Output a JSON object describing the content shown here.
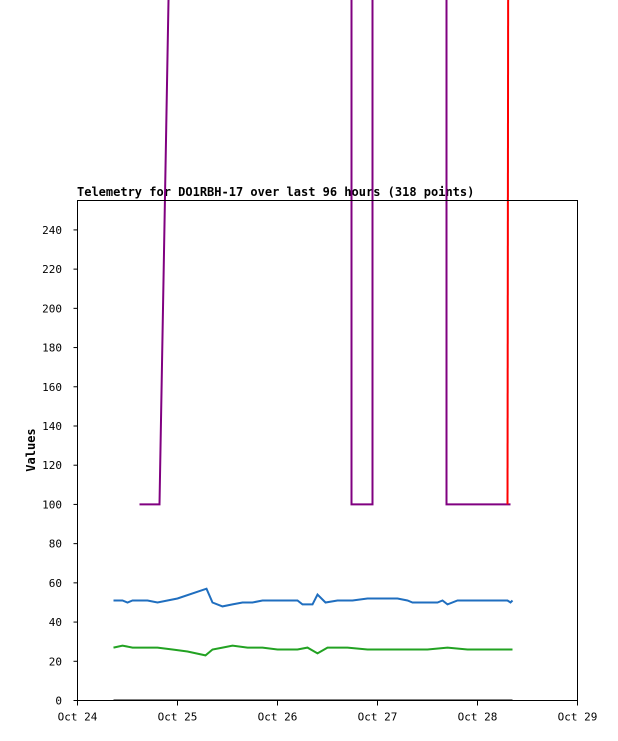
{
  "chart_data": {
    "type": "line",
    "title": "Telemetry for DO1RBH-17 over last 96 hours (318 points)",
    "xlabel": "",
    "ylabel": "Values",
    "x_ticks": [
      "Oct 24",
      "Oct 25",
      "Oct 26",
      "Oct 27",
      "Oct 28",
      "Oct 29"
    ],
    "y_ticks": [
      0,
      20,
      40,
      60,
      80,
      100,
      120,
      140,
      160,
      180,
      200,
      220,
      240
    ],
    "xlim": [
      0,
      5
    ],
    "ylim": [
      0,
      255
    ],
    "grid": false,
    "colors": {
      "background": "#ffffff",
      "frame": "#000000",
      "purple": "#800080",
      "red": "#ff0000",
      "blue": "#1f6ebf",
      "green": "#22a222",
      "black": "#000000"
    },
    "series": [
      {
        "color": "#800080",
        "points": [
          [
            0.62,
            100
          ],
          [
            0.82,
            100
          ],
          [
            0.96,
            500
          ],
          [
            2.74,
            500
          ],
          [
            2.74,
            100
          ],
          [
            2.95,
            100
          ],
          [
            2.95,
            500
          ],
          [
            3.69,
            500
          ],
          [
            3.69,
            100
          ],
          [
            4.33,
            100
          ]
        ]
      },
      {
        "color": "#ff0000",
        "points": [
          [
            4.3,
            100
          ],
          [
            4.31,
            500
          ]
        ]
      },
      {
        "color": "#1f6ebf",
        "points": [
          [
            0.36,
            51
          ],
          [
            0.45,
            51
          ],
          [
            0.5,
            50
          ],
          [
            0.55,
            51
          ],
          [
            0.6,
            51
          ],
          [
            0.7,
            51
          ],
          [
            0.8,
            50
          ],
          [
            1.0,
            52
          ],
          [
            1.29,
            57
          ],
          [
            1.35,
            50
          ],
          [
            1.45,
            48
          ],
          [
            1.55,
            49
          ],
          [
            1.65,
            50
          ],
          [
            1.75,
            50
          ],
          [
            1.85,
            51
          ],
          [
            2.0,
            51
          ],
          [
            2.1,
            51
          ],
          [
            2.2,
            51
          ],
          [
            2.25,
            49
          ],
          [
            2.35,
            49
          ],
          [
            2.4,
            54
          ],
          [
            2.48,
            50
          ],
          [
            2.6,
            51
          ],
          [
            2.75,
            51
          ],
          [
            2.9,
            52
          ],
          [
            3.05,
            52
          ],
          [
            3.2,
            52
          ],
          [
            3.3,
            51
          ],
          [
            3.35,
            50
          ],
          [
            3.5,
            50
          ],
          [
            3.6,
            50
          ],
          [
            3.65,
            51
          ],
          [
            3.7,
            49
          ],
          [
            3.8,
            51
          ],
          [
            3.9,
            51
          ],
          [
            4.0,
            51
          ],
          [
            4.1,
            51
          ],
          [
            4.2,
            51
          ],
          [
            4.3,
            51
          ],
          [
            4.33,
            50
          ],
          [
            4.35,
            51
          ]
        ]
      },
      {
        "color": "#22a222",
        "points": [
          [
            0.36,
            27
          ],
          [
            0.45,
            28
          ],
          [
            0.55,
            27
          ],
          [
            0.7,
            27
          ],
          [
            0.8,
            27
          ],
          [
            0.95,
            26
          ],
          [
            1.1,
            25
          ],
          [
            1.28,
            23
          ],
          [
            1.35,
            26
          ],
          [
            1.45,
            27
          ],
          [
            1.55,
            28
          ],
          [
            1.7,
            27
          ],
          [
            1.85,
            27
          ],
          [
            2.0,
            26
          ],
          [
            2.2,
            26
          ],
          [
            2.3,
            27
          ],
          [
            2.4,
            24
          ],
          [
            2.5,
            27
          ],
          [
            2.7,
            27
          ],
          [
            2.9,
            26
          ],
          [
            3.1,
            26
          ],
          [
            3.2,
            26
          ],
          [
            3.4,
            26
          ],
          [
            3.5,
            26
          ],
          [
            3.7,
            27
          ],
          [
            3.9,
            26
          ],
          [
            4.1,
            26
          ],
          [
            4.3,
            26
          ],
          [
            4.35,
            26
          ]
        ]
      },
      {
        "color": "#000000",
        "points": [
          [
            0.36,
            0
          ],
          [
            4.35,
            0
          ]
        ]
      }
    ]
  }
}
